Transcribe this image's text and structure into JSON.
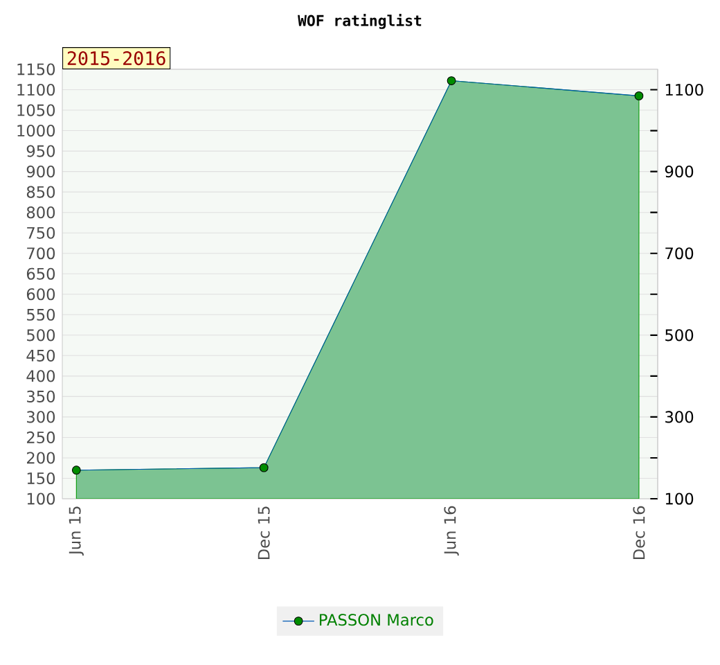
{
  "chart_data": {
    "type": "area",
    "title": "WOF ratinglist",
    "annotations": [
      "2015-2016"
    ],
    "categories": [
      "Jun 15",
      "Dec 15",
      "Jun 16",
      "Dec 16"
    ],
    "series": [
      {
        "name": "PASSON Marco",
        "color": "#7cc392",
        "values": [
          170,
          176,
          1122,
          1085
        ]
      }
    ],
    "ylim": [
      100,
      1150
    ],
    "yticks": [
      100,
      150,
      200,
      250,
      300,
      350,
      400,
      450,
      500,
      550,
      600,
      650,
      700,
      750,
      800,
      850,
      900,
      950,
      1000,
      1050,
      1100,
      1150
    ],
    "y2lim": [
      100,
      1150
    ],
    "y2ticks": [
      100,
      {
        "value": 200,
        "label": null
      },
      300,
      {
        "value": 400,
        "label": null
      },
      500,
      {
        "value": 600,
        "label": null
      },
      700,
      {
        "value": 800,
        "label": null
      },
      900,
      {
        "value": 1000,
        "label": null
      },
      1100
    ],
    "grid": "y",
    "legend": "bottom",
    "marker": "circle"
  }
}
